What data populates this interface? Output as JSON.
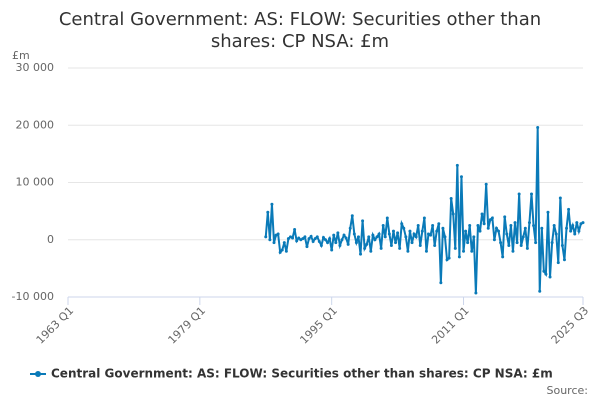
{
  "chart_data": {
    "type": "line",
    "title": [
      "Central Government: AS: FLOW: Securities other than",
      "shares: CP NSA: £m"
    ],
    "y_label": "£m",
    "source": "Source:",
    "x": [
      "1987 Q1",
      "1987 Q2",
      "1987 Q3",
      "1987 Q4",
      "1988 Q1",
      "1988 Q2",
      "1988 Q3",
      "1988 Q4",
      "1989 Q1",
      "1989 Q2",
      "1989 Q3",
      "1989 Q4",
      "1990 Q1",
      "1990 Q2",
      "1990 Q3",
      "1990 Q4",
      "1991 Q1",
      "1991 Q2",
      "1991 Q3",
      "1991 Q4",
      "1992 Q1",
      "1992 Q2",
      "1992 Q3",
      "1992 Q4",
      "1993 Q1",
      "1993 Q2",
      "1993 Q3",
      "1993 Q4",
      "1994 Q1",
      "1994 Q2",
      "1994 Q3",
      "1994 Q4",
      "1995 Q1",
      "1995 Q2",
      "1995 Q3",
      "1995 Q4",
      "1996 Q1",
      "1996 Q2",
      "1996 Q3",
      "1996 Q4",
      "1997 Q1",
      "1997 Q2",
      "1997 Q3",
      "1997 Q4",
      "1998 Q1",
      "1998 Q2",
      "1998 Q3",
      "1998 Q4",
      "1999 Q1",
      "1999 Q2",
      "1999 Q3",
      "1999 Q4",
      "2000 Q1",
      "2000 Q2",
      "2000 Q3",
      "2000 Q4",
      "2001 Q1",
      "2001 Q2",
      "2001 Q3",
      "2001 Q4",
      "2002 Q1",
      "2002 Q2",
      "2002 Q3",
      "2002 Q4",
      "2003 Q1",
      "2003 Q2",
      "2003 Q3",
      "2003 Q4",
      "2004 Q1",
      "2004 Q2",
      "2004 Q3",
      "2004 Q4",
      "2005 Q1",
      "2005 Q2",
      "2005 Q3",
      "2005 Q4",
      "2006 Q1",
      "2006 Q2",
      "2006 Q3",
      "2006 Q4",
      "2007 Q1",
      "2007 Q2",
      "2007 Q3",
      "2007 Q4",
      "2008 Q1",
      "2008 Q2",
      "2008 Q3",
      "2008 Q4",
      "2009 Q1",
      "2009 Q2",
      "2009 Q3",
      "2009 Q4",
      "2010 Q1",
      "2010 Q2",
      "2010 Q3",
      "2010 Q4",
      "2011 Q1",
      "2011 Q2",
      "2011 Q3",
      "2011 Q4",
      "2012 Q1",
      "2012 Q2",
      "2012 Q3",
      "2012 Q4",
      "2013 Q1",
      "2013 Q2",
      "2013 Q3",
      "2013 Q4",
      "2014 Q1",
      "2014 Q2",
      "2014 Q3",
      "2014 Q4",
      "2015 Q1",
      "2015 Q2",
      "2015 Q3",
      "2015 Q4",
      "2016 Q1",
      "2016 Q2",
      "2016 Q3",
      "2016 Q4",
      "2017 Q1",
      "2017 Q2",
      "2017 Q3",
      "2017 Q4",
      "2018 Q1",
      "2018 Q2",
      "2018 Q3",
      "2018 Q4",
      "2019 Q1",
      "2019 Q2",
      "2019 Q3",
      "2019 Q4",
      "2020 Q1",
      "2020 Q2",
      "2020 Q3",
      "2020 Q4",
      "2021 Q1",
      "2021 Q2",
      "2021 Q3",
      "2021 Q4",
      "2022 Q1",
      "2022 Q2",
      "2022 Q3",
      "2022 Q4",
      "2023 Q1",
      "2023 Q2",
      "2023 Q3",
      "2023 Q4",
      "2024 Q1",
      "2024 Q2",
      "2024 Q3",
      "2024 Q4",
      "2025 Q1",
      "2025 Q2",
      "2025 Q3"
    ],
    "series": [
      {
        "name": "Central Government: AS: FLOW: Securities other than shares: CP NSA: £m",
        "color": "#0a7ab8",
        "values": [
          500,
          4800,
          0,
          6200,
          -500,
          800,
          1000,
          -2200,
          -1800,
          -500,
          -2000,
          200,
          500,
          300,
          1800,
          -200,
          300,
          0,
          200,
          500,
          -1200,
          200,
          600,
          -300,
          200,
          500,
          -300,
          -1000,
          400,
          0,
          -500,
          200,
          -1800,
          800,
          -500,
          1200,
          -1000,
          0,
          800,
          300,
          -800,
          2000,
          4200,
          1000,
          -500,
          500,
          -2500,
          3300,
          -1500,
          -800,
          500,
          -2000,
          800,
          0,
          500,
          1000,
          -1500,
          2500,
          500,
          3800,
          1000,
          -1000,
          1500,
          -500,
          1200,
          -1500,
          2800,
          2000,
          500,
          -2000,
          1500,
          -500,
          1000,
          500,
          2500,
          -1000,
          1500,
          3800,
          -2000,
          1000,
          800,
          2500,
          -1000,
          1500,
          2800,
          -7500,
          2000,
          500,
          -3500,
          -3200,
          7200,
          4500,
          -1500,
          13000,
          -3000,
          11000,
          -2000,
          1500,
          -500,
          2500,
          -2000,
          500,
          -9300,
          2500,
          1500,
          4500,
          2800,
          9700,
          2000,
          3500,
          3800,
          0,
          2000,
          1500,
          -500,
          -3000,
          4000,
          1000,
          -1000,
          2500,
          -2000,
          3000,
          -500,
          8000,
          -1000,
          500,
          2000,
          -1500,
          3000,
          8000,
          2500,
          -500,
          19600,
          -9000,
          2000,
          -5500,
          -6000,
          4800,
          -6500,
          -500,
          2500,
          1000,
          -4000,
          7300,
          -1000,
          -3500,
          2000,
          5300,
          1500,
          2500,
          1000,
          3000,
          1500,
          2800,
          3000
        ]
      }
    ],
    "xlim": [
      "1963 Q1",
      "2025 Q3"
    ],
    "xticks": [
      "1963 Q1",
      "1979 Q1",
      "1995 Q1",
      "2011 Q1",
      "2025 Q3"
    ],
    "ylim": [
      -10000,
      30000
    ],
    "yticks": [
      {
        "value": -10000,
        "label": "-10 000"
      },
      0,
      {
        "value": 10000,
        "label": "10 000"
      },
      {
        "value": 20000,
        "label": "20 000"
      },
      {
        "value": 30000,
        "label": "30 000"
      }
    ],
    "grid": true,
    "legend": "bottom"
  }
}
